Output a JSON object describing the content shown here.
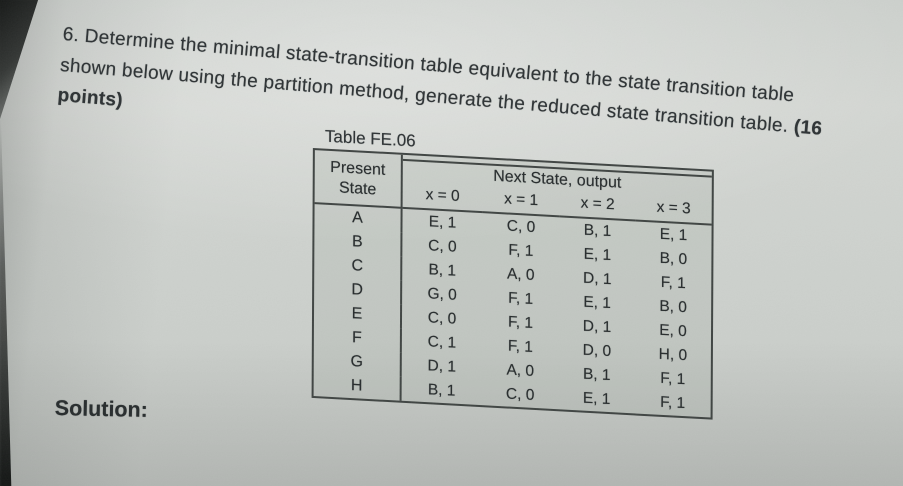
{
  "question": {
    "lines": [
      [
        {
          "text": "6. Determine the minimal state-transition table equivalent to the state transition table",
          "bold": false
        }
      ],
      [
        {
          "text": "shown below using the partition method, generate the reduced state transition table. ",
          "bold": false
        },
        {
          "text": "(16",
          "bold": true
        }
      ],
      [
        {
          "text": "points)",
          "bold": true
        }
      ]
    ]
  },
  "table": {
    "caption": "Table FE.06",
    "present_state_header": "Present State",
    "span_header": "Next State, output",
    "input_headers": [
      "x = 0",
      "x = 1",
      "x = 2",
      "x = 3"
    ],
    "rows": [
      {
        "state": "A",
        "cells": [
          "E, 1",
          "C, 0",
          "B, 1",
          "E, 1"
        ]
      },
      {
        "state": "B",
        "cells": [
          "C, 0",
          "F, 1",
          "E, 1",
          "B, 0"
        ]
      },
      {
        "state": "C",
        "cells": [
          "B, 1",
          "A, 0",
          "D, 1",
          "F, 1"
        ]
      },
      {
        "state": "D",
        "cells": [
          "G, 0",
          "F, 1",
          "E, 1",
          "B, 0"
        ]
      },
      {
        "state": "E",
        "cells": [
          "C, 0",
          "F, 1",
          "D, 1",
          "E, 0"
        ]
      },
      {
        "state": "F",
        "cells": [
          "C, 1",
          "F, 1",
          "D, 0",
          "H, 0"
        ]
      },
      {
        "state": "G",
        "cells": [
          "D, 1",
          "A, 0",
          "B, 1",
          "F, 1"
        ]
      },
      {
        "state": "H",
        "cells": [
          "B, 1",
          "C, 0",
          "E, 1",
          "F, 1"
        ]
      }
    ]
  },
  "solution_label": "Solution:",
  "colors": {
    "paper": "#cfd3cf",
    "ink": "#2d3234",
    "table_border": "#3f4442",
    "photo_background": "#141414"
  }
}
